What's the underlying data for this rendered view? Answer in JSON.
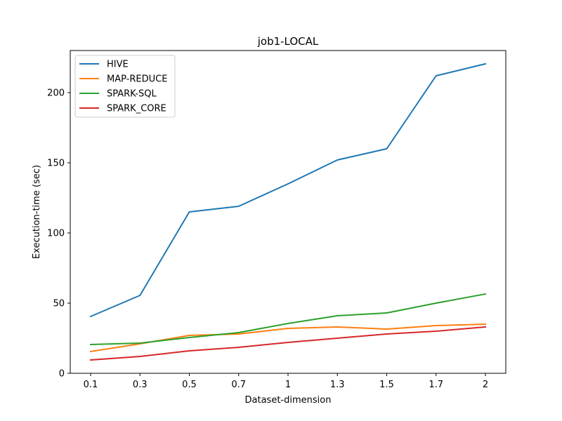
{
  "chart_data": {
    "type": "line",
    "title": "job1-LOCAL",
    "xlabel": "Dataset-dimension",
    "ylabel": "Execution-time (sec)",
    "categories": [
      "0.1",
      "0.3",
      "0.5",
      "0.7",
      "1",
      "1.3",
      "1.5",
      "1.7",
      "2"
    ],
    "ylim": [
      0,
      230
    ],
    "yticks": [
      0,
      50,
      100,
      150,
      200
    ],
    "legend_position": "top-left",
    "grid": false,
    "series": [
      {
        "name": "HIVE",
        "color": "#1f77b4",
        "values": [
          40.5,
          55.5,
          115,
          119,
          135,
          152,
          160,
          212,
          220.5
        ]
      },
      {
        "name": "MAP-REDUCE",
        "color": "#ff7f0e",
        "values": [
          15.5,
          21,
          27,
          28,
          32,
          33,
          31.5,
          34,
          35
        ]
      },
      {
        "name": "SPARK-SQL",
        "color": "#2ca02c",
        "values": [
          20.5,
          21.5,
          25.5,
          29,
          35.5,
          41,
          43,
          50,
          56.5
        ]
      },
      {
        "name": "SPARK_CORE",
        "color": "#d62728",
        "values": [
          9.5,
          12,
          16,
          18.5,
          22,
          25,
          28,
          30,
          33
        ]
      }
    ]
  }
}
